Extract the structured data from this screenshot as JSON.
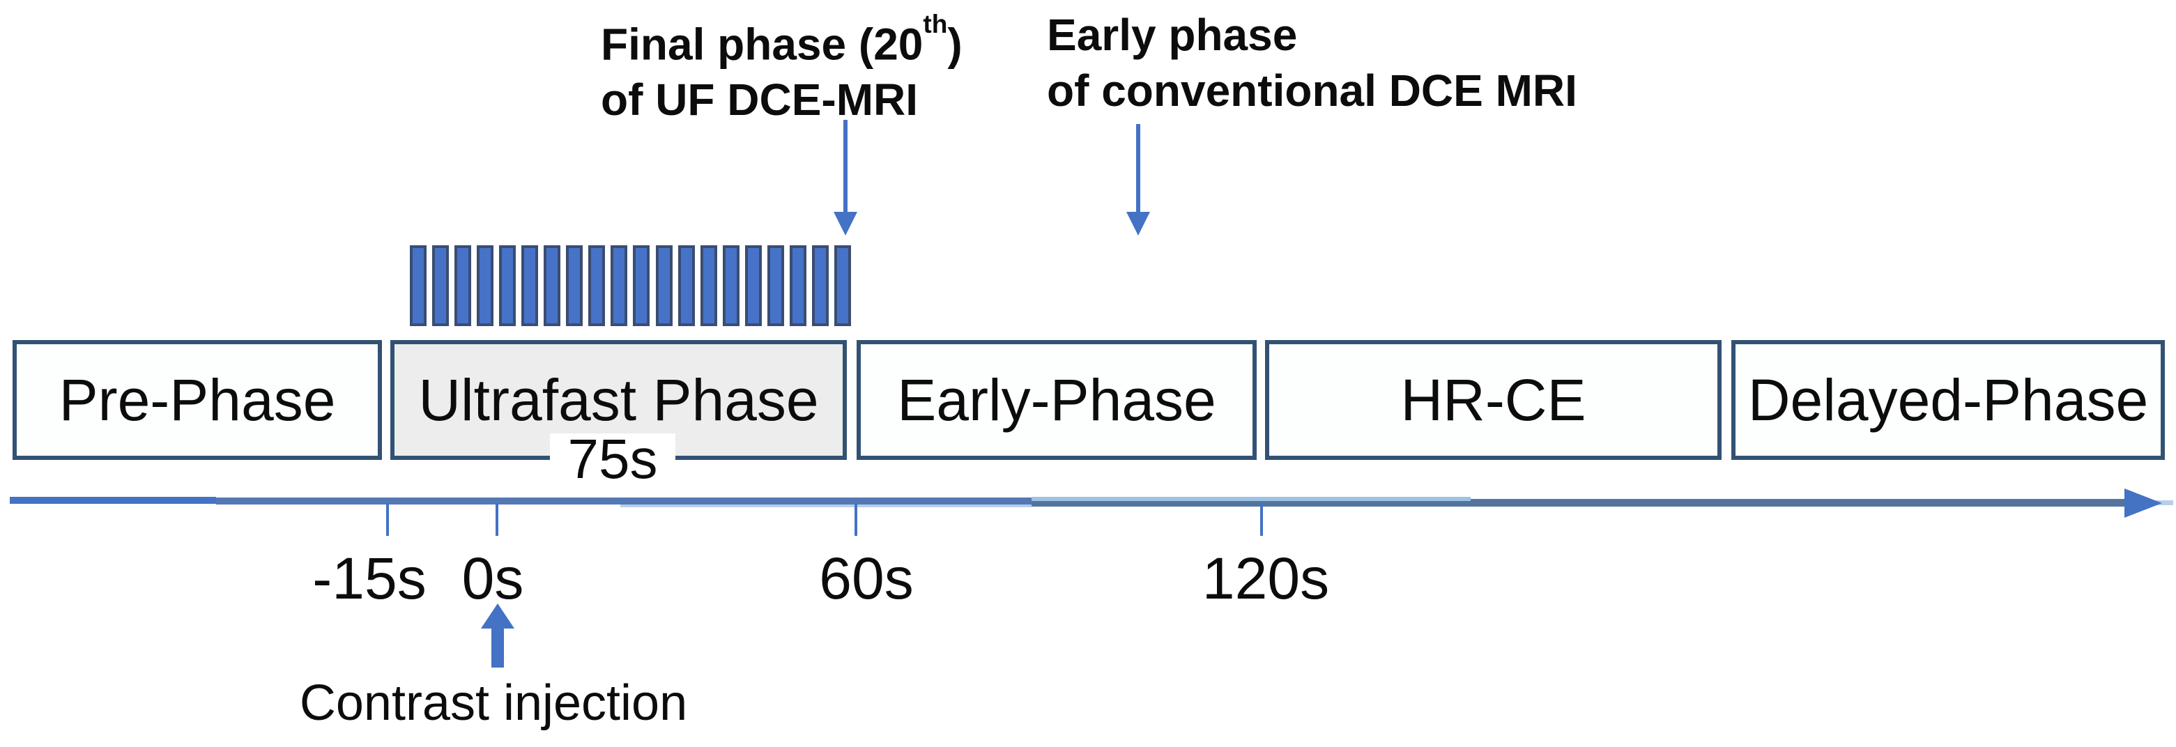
{
  "annotations": {
    "final_phase": {
      "line1_prefix": "Final phase (20",
      "line1_sup": "th",
      "line1_suffix": ")",
      "line2": "of UF DCE-MRI"
    },
    "early_phase": {
      "line1": "Early phase",
      "line2": "of conventional DCE MRI"
    },
    "contrast_injection_label": "Contrast injection"
  },
  "ultrafast_comb": {
    "phase_count": 20
  },
  "phase_boxes": [
    {
      "id": "pre-phase",
      "label": "Pre-Phase"
    },
    {
      "id": "ultrafast-phase",
      "label": "Ultrafast Phase",
      "duration_label": "75s",
      "highlighted": true
    },
    {
      "id": "early-phase",
      "label": "Early-Phase"
    },
    {
      "id": "hr-ce",
      "label": "HR-CE"
    },
    {
      "id": "delayed-phase",
      "label": "Delayed-Phase"
    }
  ],
  "timeline": {
    "tick_labels": [
      "-15s",
      "0s",
      "60s",
      "120s"
    ]
  },
  "colors": {
    "accent_blue": "#4472c4",
    "steel_blue": "#54749e",
    "steel_blue_2": "#5478b4",
    "light_blue": "#9cc2e5",
    "pale_blue_sliver": "#b7cfe9",
    "bar_fill": "#4673c8",
    "bar_border": "#3a4d72",
    "box_border": "#325273",
    "ultrafast_box_fill": "#ededee",
    "text_ink": "#0c0c0c"
  }
}
